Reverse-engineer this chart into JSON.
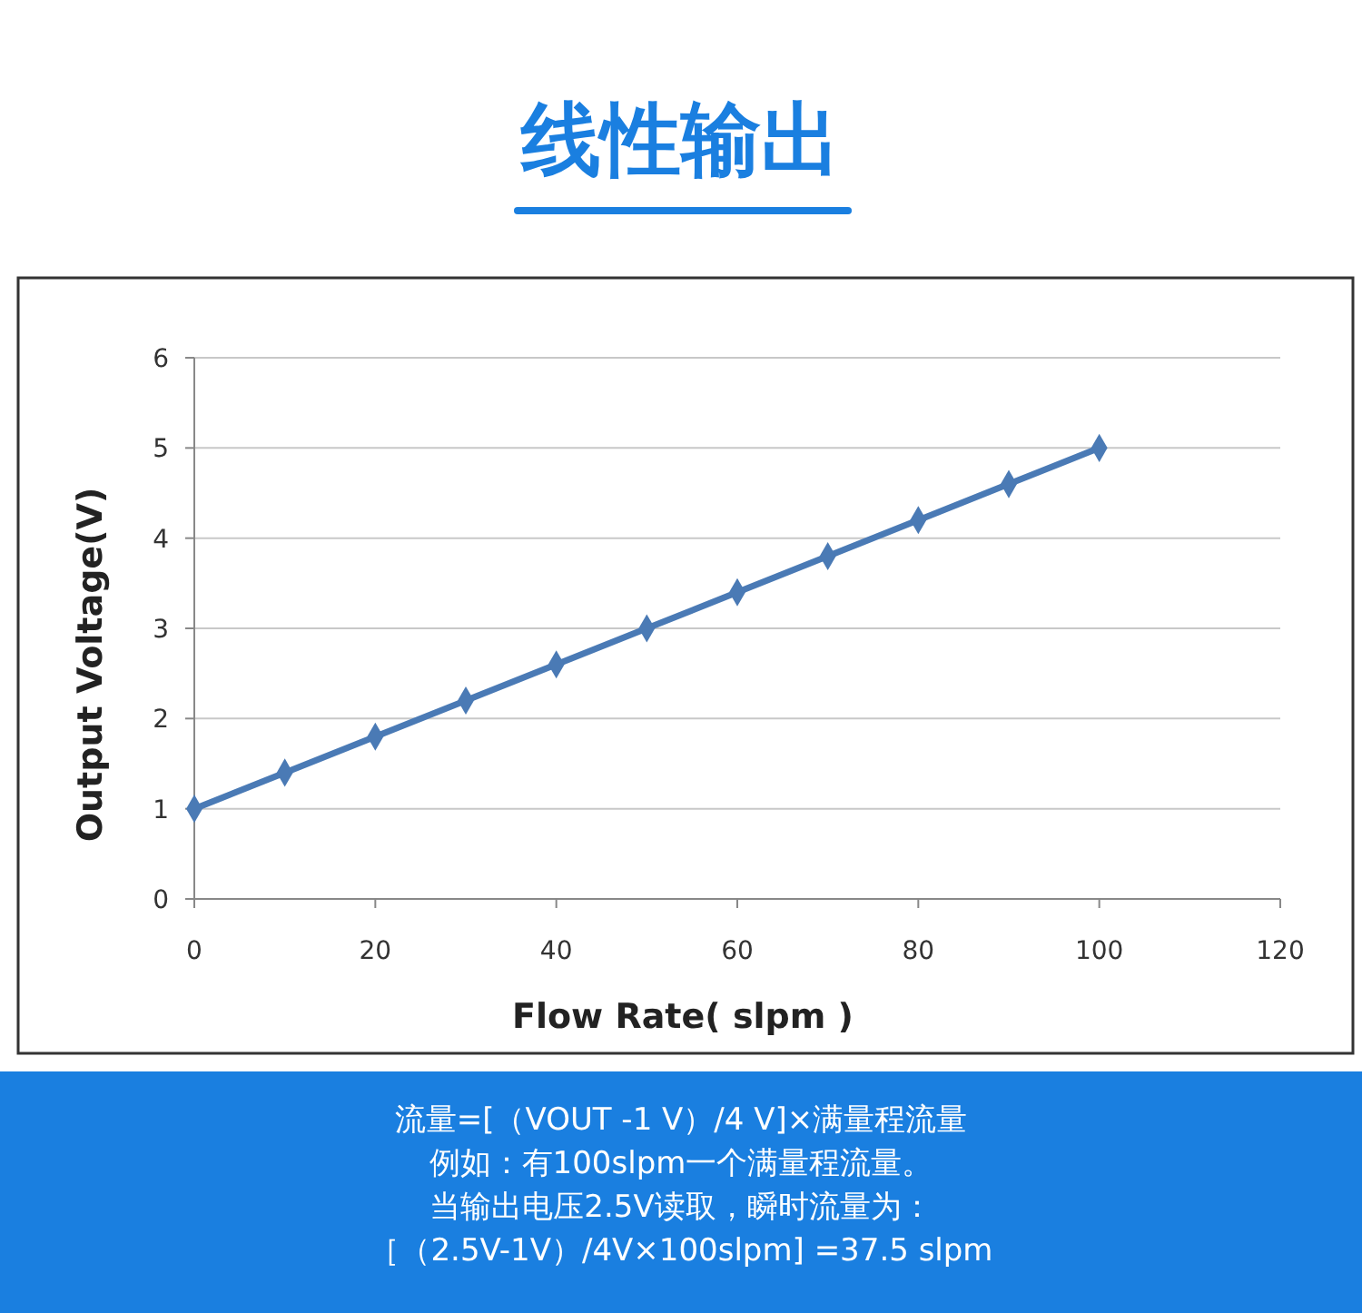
{
  "chart_data": {
    "type": "line",
    "title": "线性输出",
    "xlabel": "Flow Rate( slpm )",
    "ylabel": "Output Voltage(V)",
    "x": [
      0,
      10,
      20,
      30,
      40,
      50,
      60,
      70,
      80,
      90,
      100
    ],
    "series": [
      {
        "color": "#4a7ab5",
        "values": [
          1,
          1.4,
          1.8,
          2.2,
          2.6,
          3,
          3.4,
          3.8,
          4.2,
          4.6,
          5
        ]
      }
    ],
    "xlim": [
      0,
      120
    ],
    "xticks": [
      0,
      20,
      40,
      60,
      80,
      100,
      120
    ],
    "ylim": [
      0,
      6
    ],
    "yticks": [
      0,
      1,
      2,
      3,
      4,
      5,
      6
    ],
    "grid": "y",
    "marker": "diamond",
    "line_style": "solid",
    "annotations": [
      "流量=[（VOUT -1 V）/4 V]×满量程流量",
      "例如：有100slpm一个满量程流量。",
      "当输出电压2.5V读取，瞬时流量为：",
      "［（2.5V-1V）/4V×100slpm] =37.5 slpm"
    ]
  }
}
